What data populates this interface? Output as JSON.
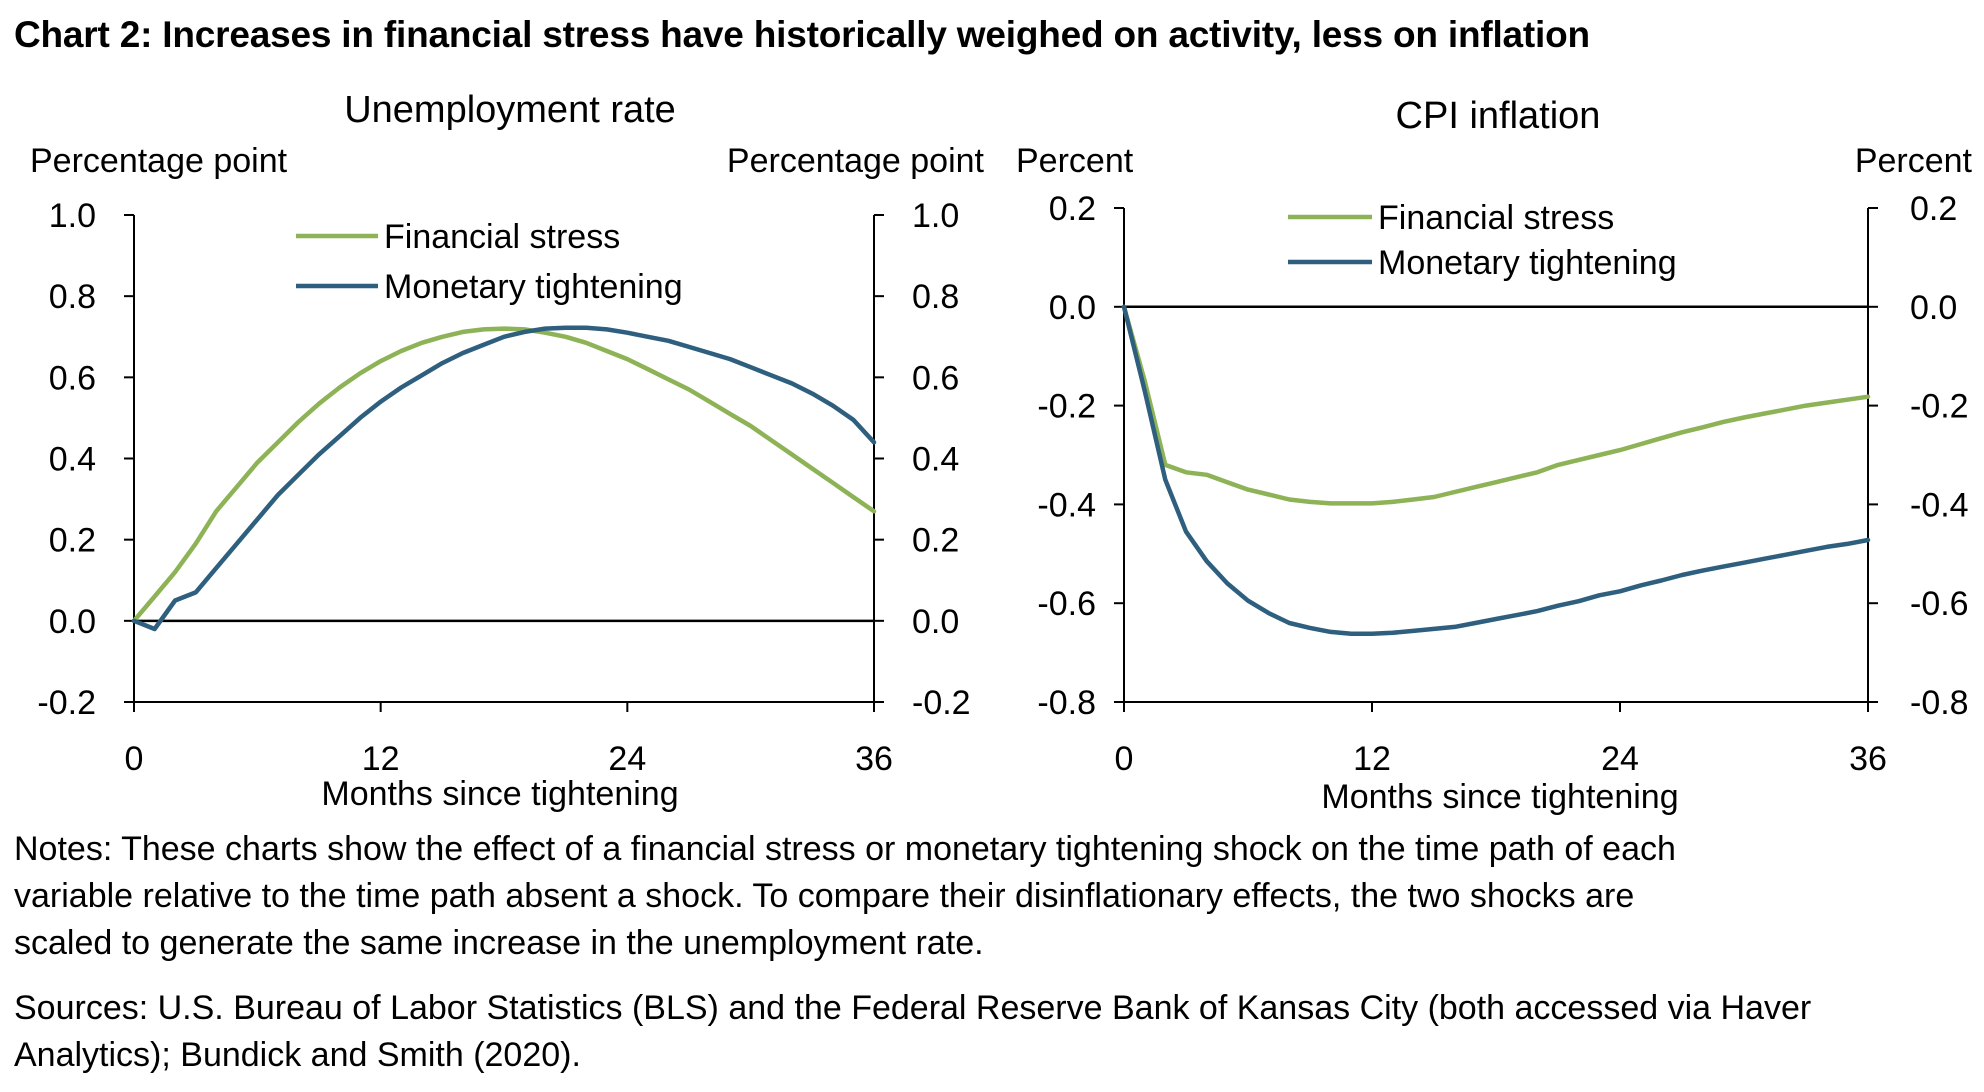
{
  "title": "Chart 2: Increases in financial stress have historically weighed on activity, less on inflation",
  "colors": {
    "financial_stress": "#8db356",
    "monetary_tightening": "#2f5f7f",
    "axis": "#000000"
  },
  "chart_data": [
    {
      "type": "line",
      "title": "Unemployment rate",
      "y_label_left": "Percentage point",
      "y_label_right": "Percentage point",
      "xlabel": "Months since tightening",
      "xlim": [
        0,
        36
      ],
      "ylim": [
        -0.2,
        1.0
      ],
      "x_ticks": [
        0,
        12,
        24,
        36
      ],
      "x_tick_labels": [
        "0",
        "12",
        "24",
        "36"
      ],
      "y_ticks": [
        -0.2,
        0.0,
        0.2,
        0.4,
        0.6,
        0.8,
        1.0
      ],
      "y_tick_labels": [
        "-0.2",
        "0.0",
        "0.2",
        "0.4",
        "0.6",
        "0.8",
        "1.0"
      ],
      "legend": {
        "placement": "top-left",
        "entries": [
          "Financial stress",
          "Monetary tightening"
        ]
      },
      "series": [
        {
          "name": "Financial stress",
          "x": [
            0,
            1,
            2,
            3,
            4,
            5,
            6,
            7,
            8,
            9,
            10,
            11,
            12,
            13,
            14,
            15,
            16,
            17,
            18,
            19,
            20,
            21,
            22,
            23,
            24,
            25,
            26,
            27,
            28,
            29,
            30,
            31,
            32,
            33,
            34,
            35,
            36
          ],
          "values": [
            0.0,
            0.06,
            0.12,
            0.19,
            0.27,
            0.33,
            0.39,
            0.44,
            0.49,
            0.535,
            0.575,
            0.61,
            0.64,
            0.665,
            0.685,
            0.7,
            0.712,
            0.718,
            0.72,
            0.718,
            0.71,
            0.7,
            0.685,
            0.665,
            0.645,
            0.62,
            0.595,
            0.57,
            0.54,
            0.51,
            0.48,
            0.445,
            0.41,
            0.375,
            0.34,
            0.305,
            0.27
          ]
        },
        {
          "name": "Monetary tightening",
          "x": [
            0,
            1,
            2,
            3,
            4,
            5,
            6,
            7,
            8,
            9,
            10,
            11,
            12,
            13,
            14,
            15,
            16,
            17,
            18,
            19,
            20,
            21,
            22,
            23,
            24,
            25,
            26,
            27,
            28,
            29,
            30,
            31,
            32,
            33,
            34,
            35,
            36
          ],
          "values": [
            0.0,
            -0.02,
            0.05,
            0.07,
            0.13,
            0.19,
            0.25,
            0.31,
            0.36,
            0.41,
            0.455,
            0.5,
            0.54,
            0.575,
            0.605,
            0.635,
            0.66,
            0.68,
            0.7,
            0.712,
            0.72,
            0.722,
            0.722,
            0.718,
            0.71,
            0.7,
            0.69,
            0.675,
            0.66,
            0.645,
            0.625,
            0.605,
            0.585,
            0.56,
            0.53,
            0.495,
            0.44
          ]
        }
      ]
    },
    {
      "type": "line",
      "title": "CPI inflation",
      "y_label_left": "Percent",
      "y_label_right": "Percent",
      "xlabel": "Months since tightening",
      "xlim": [
        0,
        36
      ],
      "ylim": [
        -0.8,
        0.2
      ],
      "x_ticks": [
        0,
        12,
        24,
        36
      ],
      "x_tick_labels": [
        "0",
        "12",
        "24",
        "36"
      ],
      "y_ticks": [
        -0.8,
        -0.6,
        -0.4,
        -0.2,
        0.0,
        0.2
      ],
      "y_tick_labels": [
        "-0.8",
        "-0.6",
        "-0.4",
        "-0.2",
        "0.0",
        "0.2"
      ],
      "legend": {
        "placement": "top-left",
        "entries": [
          "Financial stress",
          "Monetary tightening"
        ]
      },
      "series": [
        {
          "name": "Financial stress",
          "x": [
            0,
            1,
            2,
            3,
            4,
            5,
            6,
            7,
            8,
            9,
            10,
            11,
            12,
            13,
            14,
            15,
            16,
            17,
            18,
            19,
            20,
            21,
            22,
            23,
            24,
            25,
            26,
            27,
            28,
            29,
            30,
            31,
            32,
            33,
            34,
            35,
            36
          ],
          "values": [
            0.0,
            -0.15,
            -0.32,
            -0.335,
            -0.34,
            -0.355,
            -0.37,
            -0.38,
            -0.39,
            -0.395,
            -0.398,
            -0.398,
            -0.398,
            -0.395,
            -0.39,
            -0.385,
            -0.375,
            -0.365,
            -0.355,
            -0.345,
            -0.335,
            -0.32,
            -0.31,
            -0.3,
            -0.29,
            -0.278,
            -0.266,
            -0.254,
            -0.244,
            -0.233,
            -0.224,
            -0.216,
            -0.208,
            -0.2,
            -0.194,
            -0.188,
            -0.182
          ]
        },
        {
          "name": "Monetary tightening",
          "x": [
            0,
            1,
            2,
            3,
            4,
            5,
            6,
            7,
            8,
            9,
            10,
            11,
            12,
            13,
            14,
            15,
            16,
            17,
            18,
            19,
            20,
            21,
            22,
            23,
            24,
            25,
            26,
            27,
            28,
            29,
            30,
            31,
            32,
            33,
            34,
            35,
            36
          ],
          "values": [
            0.0,
            -0.17,
            -0.35,
            -0.455,
            -0.515,
            -0.56,
            -0.595,
            -0.62,
            -0.64,
            -0.65,
            -0.658,
            -0.662,
            -0.662,
            -0.66,
            -0.656,
            -0.652,
            -0.648,
            -0.64,
            -0.632,
            -0.624,
            -0.616,
            -0.605,
            -0.596,
            -0.584,
            -0.576,
            -0.564,
            -0.554,
            -0.543,
            -0.534,
            -0.526,
            -0.518,
            -0.51,
            -0.502,
            -0.494,
            -0.486,
            -0.48,
            -0.472
          ]
        }
      ]
    }
  ],
  "notes": [
    "Notes: These charts show the effect of a financial stress or monetary tightening shock on the time path of each",
    "variable relative to the time path absent a shock. To compare their disinflationary effects, the two shocks are",
    "scaled to generate the same increase in the unemployment rate."
  ],
  "sources": [
    "Sources: U.S. Bureau of Labor Statistics (BLS) and the Federal Reserve Bank of Kansas City (both accessed via Haver",
    "Analytics); Bundick and Smith (2020)."
  ]
}
